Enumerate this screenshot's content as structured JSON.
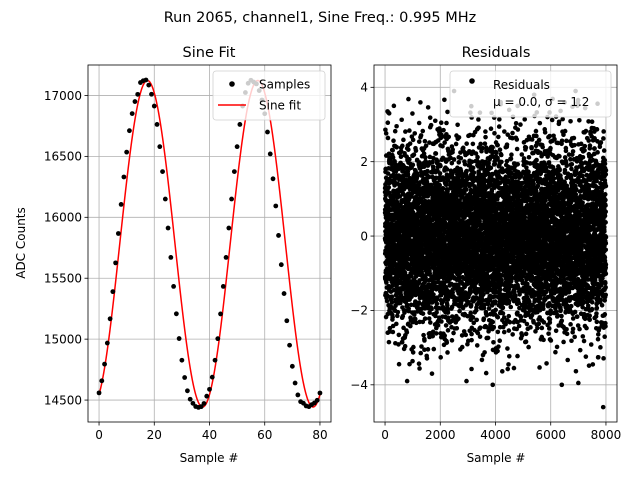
{
  "figure": {
    "suptitle": "Run 2065, channel1, Sine Freq.: 0.995 MHz"
  },
  "chart_data": [
    {
      "type": "scatter",
      "title": "Sine Fit",
      "xlabel": "Sample #",
      "ylabel": "ADC Counts",
      "xlim": [
        -4,
        84
      ],
      "ylim": [
        14320,
        17250
      ],
      "x_ticks": [
        0,
        20,
        40,
        60,
        80
      ],
      "y_ticks": [
        14500,
        15000,
        15500,
        16000,
        16500,
        17000
      ],
      "grid": true,
      "legend": "top-right",
      "series": [
        {
          "name": "Samples",
          "kind": "points",
          "color": "#000000",
          "x": [
            0,
            1,
            2,
            3,
            4,
            5,
            6,
            7,
            8,
            9,
            10,
            11,
            12,
            13,
            14,
            15,
            16,
            17,
            18,
            19,
            20,
            21,
            22,
            23,
            24,
            25,
            26,
            27,
            28,
            29,
            30,
            31,
            32,
            33,
            34,
            35,
            36,
            37,
            38,
            39,
            40,
            41,
            42,
            43,
            44,
            45,
            46,
            47,
            48,
            49,
            50,
            51,
            52,
            53,
            54,
            55,
            56,
            57,
            58,
            59,
            60,
            61,
            62,
            63,
            64,
            65,
            66,
            67,
            68,
            69,
            70,
            71,
            72,
            73,
            74,
            75,
            76,
            77,
            78,
            79,
            80
          ],
          "values": [
            14559,
            14658,
            14795,
            14968,
            15167,
            15390,
            15626,
            15867,
            16106,
            16331,
            16535,
            16711,
            16851,
            16950,
            17009,
            17106,
            17121,
            17127,
            17085,
            17010,
            16913,
            16762,
            16580,
            16375,
            16150,
            15912,
            15671,
            15433,
            15208,
            15005,
            14827,
            14685,
            14576,
            14507,
            14473,
            14447,
            14440,
            14446,
            14472,
            14532,
            14588,
            14688,
            14827,
            15004,
            15207,
            15433,
            15671,
            15912,
            16150,
            16375,
            16580,
            16762,
            16913,
            17024,
            17100,
            17125,
            17110,
            17095,
            17040,
            16963,
            16850,
            16700,
            16520,
            16316,
            16093,
            15851,
            15611,
            15374,
            15151,
            14950,
            14777,
            14640,
            14542,
            14487,
            14474,
            14452,
            14446,
            14462,
            14476,
            14498,
            14558
          ]
        },
        {
          "name": "Sine fit",
          "kind": "line",
          "color": "#ff0000",
          "period": 40,
          "offset": 15783,
          "amplitude": 1340,
          "peak_at": 17.5,
          "x_range": [
            0,
            80
          ]
        }
      ]
    },
    {
      "type": "scatter",
      "title": "Residuals",
      "xlabel": "Sample #",
      "ylabel": "",
      "xlim": [
        -400,
        8400
      ],
      "ylim": [
        -5,
        4.6
      ],
      "x_ticks": [
        0,
        2000,
        4000,
        6000,
        8000
      ],
      "y_ticks": [
        -4,
        -2,
        0,
        2,
        4
      ],
      "grid": true,
      "legend": "top-right",
      "series": [
        {
          "name": "Residuals",
          "color": "#000000",
          "n_points": 8000,
          "mean": 0.0,
          "sigma": 1.2,
          "x_range": [
            0,
            8000
          ]
        }
      ],
      "legend_labels": [
        "Residuals",
        "μ = 0.0, σ = 1.2"
      ],
      "outliers": [
        {
          "x": 7900,
          "y": -4.6
        },
        {
          "x": 2500,
          "y": 3.9
        },
        {
          "x": 5400,
          "y": 3.8
        },
        {
          "x": 6900,
          "y": 3.9
        },
        {
          "x": 800,
          "y": -3.9
        },
        {
          "x": 3900,
          "y": -4.0
        },
        {
          "x": 6400,
          "y": -4.0
        },
        {
          "x": 2950,
          "y": -3.9
        },
        {
          "x": 7000,
          "y": -3.95
        },
        {
          "x": 150,
          "y": 3.3
        },
        {
          "x": 4800,
          "y": 3.5
        },
        {
          "x": 1700,
          "y": -3.7
        }
      ]
    }
  ]
}
